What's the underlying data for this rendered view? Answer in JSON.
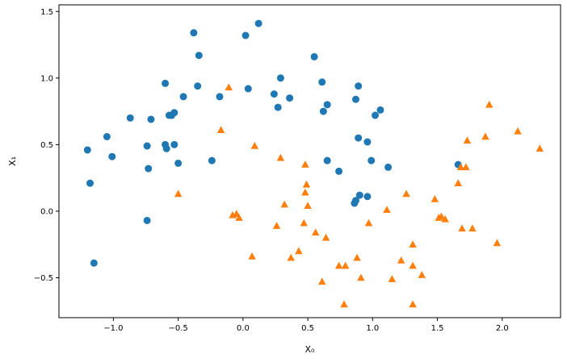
{
  "chart_data": {
    "type": "scatter",
    "xlabel": "X₀",
    "ylabel": "X₁",
    "xlim": [
      -1.42,
      2.45
    ],
    "ylim": [
      -0.8,
      1.55
    ],
    "x_ticks": [
      -1.0,
      -0.5,
      0.0,
      0.5,
      1.0,
      1.5,
      2.0
    ],
    "x_tick_labels": [
      "−1.0",
      "−0.5",
      "0.0",
      "0.5",
      "1.0",
      "1.5",
      "2.0"
    ],
    "y_ticks": [
      -0.5,
      0.0,
      0.5,
      1.0,
      1.5
    ],
    "y_tick_labels": [
      "−0.5",
      "0.0",
      "0.5",
      "1.0",
      "1.5"
    ],
    "grid": false,
    "series": [
      {
        "marker": "circle",
        "color": "#1f77b4",
        "points": [
          [
            -1.2,
            0.46
          ],
          [
            -1.18,
            0.21
          ],
          [
            -1.15,
            -0.39
          ],
          [
            -1.05,
            0.56
          ],
          [
            -1.01,
            0.41
          ],
          [
            -0.87,
            0.7
          ],
          [
            -0.74,
            0.49
          ],
          [
            -0.73,
            0.32
          ],
          [
            -0.74,
            -0.07
          ],
          [
            -0.71,
            0.69
          ],
          [
            -0.6,
            0.96
          ],
          [
            -0.6,
            0.5
          ],
          [
            -0.59,
            0.47
          ],
          [
            -0.57,
            0.72
          ],
          [
            -0.55,
            0.72
          ],
          [
            -0.53,
            0.74
          ],
          [
            -0.53,
            0.5
          ],
          [
            -0.5,
            0.36
          ],
          [
            -0.46,
            0.86
          ],
          [
            -0.38,
            1.34
          ],
          [
            -0.35,
            0.94
          ],
          [
            -0.34,
            1.17
          ],
          [
            -0.24,
            0.38
          ],
          [
            -0.18,
            0.86
          ],
          [
            0.02,
            1.32
          ],
          [
            0.04,
            0.92
          ],
          [
            0.12,
            1.41
          ],
          [
            0.24,
            0.88
          ],
          [
            0.27,
            0.78
          ],
          [
            0.29,
            1.0
          ],
          [
            0.36,
            0.85
          ],
          [
            0.55,
            1.16
          ],
          [
            0.61,
            0.97
          ],
          [
            0.62,
            0.75
          ],
          [
            0.65,
            0.8
          ],
          [
            0.65,
            0.38
          ],
          [
            0.74,
            0.3
          ],
          [
            0.87,
            0.84
          ],
          [
            0.86,
            0.06
          ],
          [
            0.87,
            0.08
          ],
          [
            0.89,
            0.94
          ],
          [
            0.89,
            0.55
          ],
          [
            0.9,
            0.12
          ],
          [
            0.96,
            0.11
          ],
          [
            0.96,
            0.52
          ],
          [
            0.99,
            0.38
          ],
          [
            1.02,
            0.72
          ],
          [
            1.06,
            0.76
          ],
          [
            1.12,
            0.33
          ],
          [
            1.66,
            0.35
          ]
        ]
      },
      {
        "marker": "triangle",
        "color": "#ff7f0e",
        "points": [
          [
            -0.5,
            0.13
          ],
          [
            -0.17,
            0.61
          ],
          [
            -0.11,
            0.93
          ],
          [
            -0.08,
            -0.03
          ],
          [
            -0.05,
            -0.02
          ],
          [
            -0.03,
            -0.05
          ],
          [
            0.07,
            -0.34
          ],
          [
            0.09,
            0.49
          ],
          [
            0.26,
            -0.11
          ],
          [
            0.29,
            0.4
          ],
          [
            0.32,
            0.05
          ],
          [
            0.37,
            -0.35
          ],
          [
            0.43,
            -0.3
          ],
          [
            0.47,
            -0.09
          ],
          [
            0.48,
            0.14
          ],
          [
            0.48,
            0.35
          ],
          [
            0.49,
            0.2
          ],
          [
            0.5,
            0.04
          ],
          [
            0.56,
            -0.16
          ],
          [
            0.61,
            -0.53
          ],
          [
            0.64,
            -0.2
          ],
          [
            0.74,
            -0.41
          ],
          [
            0.78,
            -0.7
          ],
          [
            0.79,
            -0.41
          ],
          [
            0.88,
            -0.35
          ],
          [
            0.91,
            -0.5
          ],
          [
            0.97,
            -0.09
          ],
          [
            1.11,
            0.01
          ],
          [
            1.15,
            -0.51
          ],
          [
            1.22,
            -0.37
          ],
          [
            1.26,
            0.13
          ],
          [
            1.31,
            -0.7
          ],
          [
            1.31,
            -0.25
          ],
          [
            1.31,
            -0.41
          ],
          [
            1.38,
            -0.48
          ],
          [
            1.48,
            0.09
          ],
          [
            1.51,
            -0.05
          ],
          [
            1.53,
            -0.04
          ],
          [
            1.56,
            -0.06
          ],
          [
            1.66,
            0.21
          ],
          [
            1.68,
            0.33
          ],
          [
            1.69,
            -0.13
          ],
          [
            1.72,
            0.33
          ],
          [
            1.73,
            0.53
          ],
          [
            1.77,
            -0.13
          ],
          [
            1.87,
            0.56
          ],
          [
            1.9,
            0.8
          ],
          [
            1.96,
            -0.24
          ],
          [
            2.12,
            0.6
          ],
          [
            2.29,
            0.47
          ]
        ]
      }
    ]
  }
}
